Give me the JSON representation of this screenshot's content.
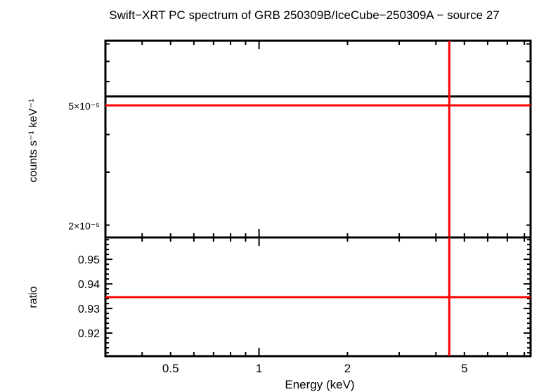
{
  "chart_data": {
    "type": "line",
    "title": "Swift−XRT PC spectrum of GRB 250309B/IceCube−250309A − source 27",
    "xlabel": "Energy (keV)",
    "xscale": "log",
    "xlim": [
      0.3,
      8.4
    ],
    "x_ticks": [
      {
        "value": 0.5,
        "label": "0.5"
      },
      {
        "value": 1,
        "label": "1"
      },
      {
        "value": 2,
        "label": "2"
      },
      {
        "value": 5,
        "label": "5"
      }
    ],
    "colors": {
      "data": "#000000",
      "model": "#ff0000"
    },
    "panels": [
      {
        "name": "spectrum",
        "ylabel": "counts s⁻¹ keV⁻¹",
        "yscale": "log",
        "ylim": [
          1.82e-05,
          8.2e-05
        ],
        "y_ticks": [
          {
            "value": 2e-05,
            "label": "2×10⁻⁵"
          },
          {
            "value": 5e-05,
            "label": "5×10⁻⁵"
          }
        ],
        "series": [
          {
            "name": "data",
            "color": "#000000",
            "x": [
              0.3,
              8.4
            ],
            "y": [
              5.36e-05,
              5.36e-05
            ]
          },
          {
            "name": "model",
            "color": "#ff0000",
            "x": [
              0.3,
              8.4
            ],
            "y": [
              5e-05,
              5e-05
            ]
          }
        ],
        "vline": {
          "x": 4.44,
          "color": "#ff0000"
        }
      },
      {
        "name": "ratio",
        "ylabel": "ratio",
        "yscale": "linear",
        "ylim": [
          0.9106,
          0.9589
        ],
        "y_ticks": [
          {
            "value": 0.92,
            "label": "0.92"
          },
          {
            "value": 0.93,
            "label": "0.93"
          },
          {
            "value": 0.94,
            "label": "0.94"
          },
          {
            "value": 0.95,
            "label": "0.95"
          }
        ],
        "series": [
          {
            "name": "ratio",
            "color": "#ff0000",
            "x": [
              0.3,
              8.4
            ],
            "y": [
              0.9346,
              0.9346
            ]
          }
        ],
        "vline": {
          "x": 4.44,
          "color": "#ff0000"
        }
      }
    ]
  }
}
